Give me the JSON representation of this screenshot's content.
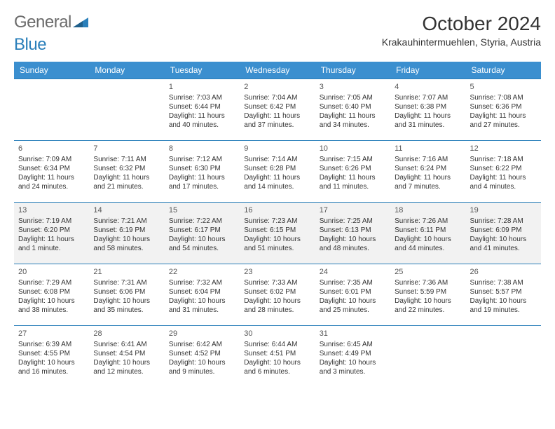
{
  "logo": {
    "text1": "General",
    "text2": "Blue"
  },
  "title": "October 2024",
  "location": "Krakauhintermuehlen, Styria, Austria",
  "colors": {
    "header_bg": "#3b8fcf",
    "header_text": "#ffffff",
    "row_border": "#2a7fba",
    "shaded_bg": "#f2f2f2",
    "logo_gray": "#6b6b6b",
    "logo_blue": "#2a7fba"
  },
  "days": [
    "Sunday",
    "Monday",
    "Tuesday",
    "Wednesday",
    "Thursday",
    "Friday",
    "Saturday"
  ],
  "weeks": [
    [
      null,
      null,
      {
        "n": "1",
        "sr": "7:03 AM",
        "ss": "6:44 PM",
        "dl": "11 hours and 40 minutes."
      },
      {
        "n": "2",
        "sr": "7:04 AM",
        "ss": "6:42 PM",
        "dl": "11 hours and 37 minutes."
      },
      {
        "n": "3",
        "sr": "7:05 AM",
        "ss": "6:40 PM",
        "dl": "11 hours and 34 minutes."
      },
      {
        "n": "4",
        "sr": "7:07 AM",
        "ss": "6:38 PM",
        "dl": "11 hours and 31 minutes."
      },
      {
        "n": "5",
        "sr": "7:08 AM",
        "ss": "6:36 PM",
        "dl": "11 hours and 27 minutes."
      }
    ],
    [
      {
        "n": "6",
        "sr": "7:09 AM",
        "ss": "6:34 PM",
        "dl": "11 hours and 24 minutes."
      },
      {
        "n": "7",
        "sr": "7:11 AM",
        "ss": "6:32 PM",
        "dl": "11 hours and 21 minutes."
      },
      {
        "n": "8",
        "sr": "7:12 AM",
        "ss": "6:30 PM",
        "dl": "11 hours and 17 minutes."
      },
      {
        "n": "9",
        "sr": "7:14 AM",
        "ss": "6:28 PM",
        "dl": "11 hours and 14 minutes."
      },
      {
        "n": "10",
        "sr": "7:15 AM",
        "ss": "6:26 PM",
        "dl": "11 hours and 11 minutes."
      },
      {
        "n": "11",
        "sr": "7:16 AM",
        "ss": "6:24 PM",
        "dl": "11 hours and 7 minutes."
      },
      {
        "n": "12",
        "sr": "7:18 AM",
        "ss": "6:22 PM",
        "dl": "11 hours and 4 minutes."
      }
    ],
    [
      {
        "n": "13",
        "sr": "7:19 AM",
        "ss": "6:20 PM",
        "dl": "11 hours and 1 minute."
      },
      {
        "n": "14",
        "sr": "7:21 AM",
        "ss": "6:19 PM",
        "dl": "10 hours and 58 minutes."
      },
      {
        "n": "15",
        "sr": "7:22 AM",
        "ss": "6:17 PM",
        "dl": "10 hours and 54 minutes."
      },
      {
        "n": "16",
        "sr": "7:23 AM",
        "ss": "6:15 PM",
        "dl": "10 hours and 51 minutes."
      },
      {
        "n": "17",
        "sr": "7:25 AM",
        "ss": "6:13 PM",
        "dl": "10 hours and 48 minutes."
      },
      {
        "n": "18",
        "sr": "7:26 AM",
        "ss": "6:11 PM",
        "dl": "10 hours and 44 minutes."
      },
      {
        "n": "19",
        "sr": "7:28 AM",
        "ss": "6:09 PM",
        "dl": "10 hours and 41 minutes."
      }
    ],
    [
      {
        "n": "20",
        "sr": "7:29 AM",
        "ss": "6:08 PM",
        "dl": "10 hours and 38 minutes."
      },
      {
        "n": "21",
        "sr": "7:31 AM",
        "ss": "6:06 PM",
        "dl": "10 hours and 35 minutes."
      },
      {
        "n": "22",
        "sr": "7:32 AM",
        "ss": "6:04 PM",
        "dl": "10 hours and 31 minutes."
      },
      {
        "n": "23",
        "sr": "7:33 AM",
        "ss": "6:02 PM",
        "dl": "10 hours and 28 minutes."
      },
      {
        "n": "24",
        "sr": "7:35 AM",
        "ss": "6:01 PM",
        "dl": "10 hours and 25 minutes."
      },
      {
        "n": "25",
        "sr": "7:36 AM",
        "ss": "5:59 PM",
        "dl": "10 hours and 22 minutes."
      },
      {
        "n": "26",
        "sr": "7:38 AM",
        "ss": "5:57 PM",
        "dl": "10 hours and 19 minutes."
      }
    ],
    [
      {
        "n": "27",
        "sr": "6:39 AM",
        "ss": "4:55 PM",
        "dl": "10 hours and 16 minutes."
      },
      {
        "n": "28",
        "sr": "6:41 AM",
        "ss": "4:54 PM",
        "dl": "10 hours and 12 minutes."
      },
      {
        "n": "29",
        "sr": "6:42 AM",
        "ss": "4:52 PM",
        "dl": "10 hours and 9 minutes."
      },
      {
        "n": "30",
        "sr": "6:44 AM",
        "ss": "4:51 PM",
        "dl": "10 hours and 6 minutes."
      },
      {
        "n": "31",
        "sr": "6:45 AM",
        "ss": "4:49 PM",
        "dl": "10 hours and 3 minutes."
      },
      null,
      null
    ]
  ],
  "labels": {
    "sunrise": "Sunrise: ",
    "sunset": "Sunset: ",
    "daylight": "Daylight: "
  },
  "shaded_rows": [
    2
  ]
}
